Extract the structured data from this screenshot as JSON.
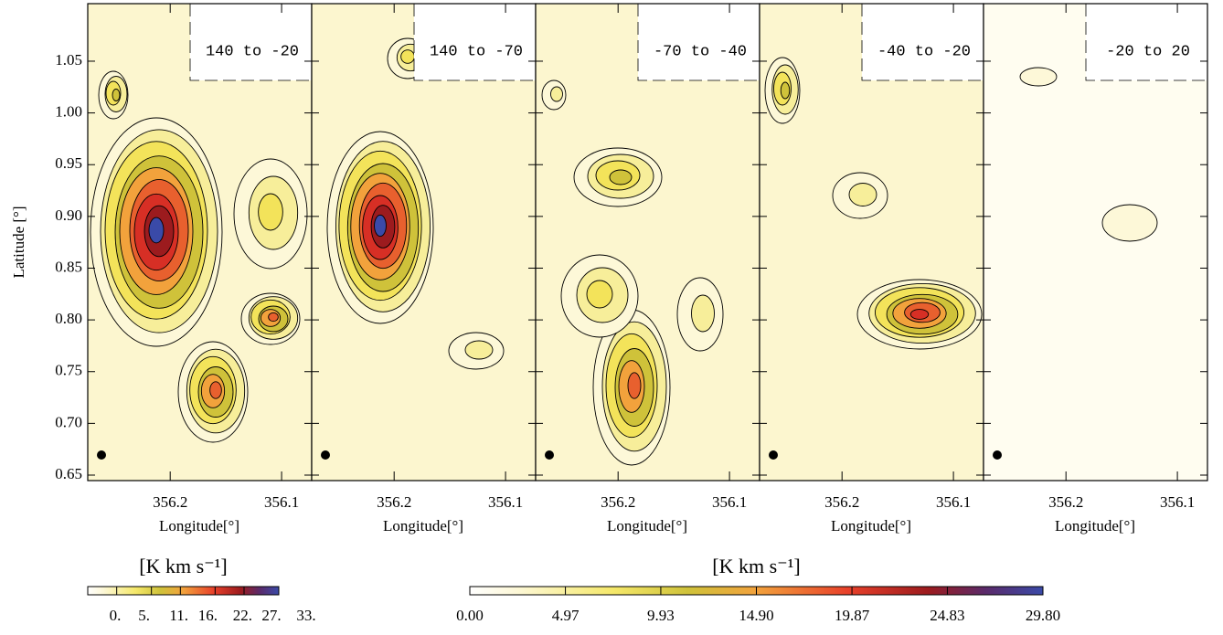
{
  "chart_data": {
    "type": "contour",
    "ylabel": "Latitude [°]",
    "xlabel": "Longitude[°]",
    "ylim": [
      0.6447,
      1.1056
    ],
    "yticks": [
      {
        "value": 0.65,
        "label": "0.65"
      },
      {
        "value": 0.7,
        "label": "0.70"
      },
      0.75,
      {
        "value": 0.8,
        "label": "0.80"
      },
      0.85,
      {
        "value": 0.9,
        "label": "0.90"
      },
      0.95,
      {
        "value": 1.0,
        "label": "1.00"
      },
      1.05
    ],
    "xlim": [
      356.274,
      356.073
    ],
    "xticks": [
      356.2,
      356.1
    ],
    "panels": [
      {
        "label": "140 to -20"
      },
      {
        "label": "140 to -70"
      },
      {
        "label": "-70 to -40"
      },
      {
        "label": "-40 to -20"
      },
      {
        "label": "-20 to 20"
      }
    ],
    "colorbars": [
      {
        "label": "[K km s⁻¹]",
        "lim": [
          0,
          33
        ],
        "ticks": [
          {
            "value": 0,
            "label": "0."
          },
          {
            "value": 5,
            "label": "5."
          },
          {
            "value": 11,
            "label": "11."
          },
          {
            "value": 16,
            "label": "16."
          },
          {
            "value": 22,
            "label": "22."
          },
          {
            "value": 27,
            "label": "27."
          },
          {
            "value": 33,
            "label": "33."
          }
        ]
      },
      {
        "label": "[K km s⁻¹]",
        "lim": [
          0,
          29.8
        ],
        "ticks": [
          {
            "value": 0,
            "label": "0.00"
          },
          4.97,
          9.93,
          {
            "value": 14.9,
            "label": "14.90"
          },
          19.87,
          24.83,
          {
            "value": 29.8,
            "label": "29.80"
          }
        ]
      }
    ]
  }
}
